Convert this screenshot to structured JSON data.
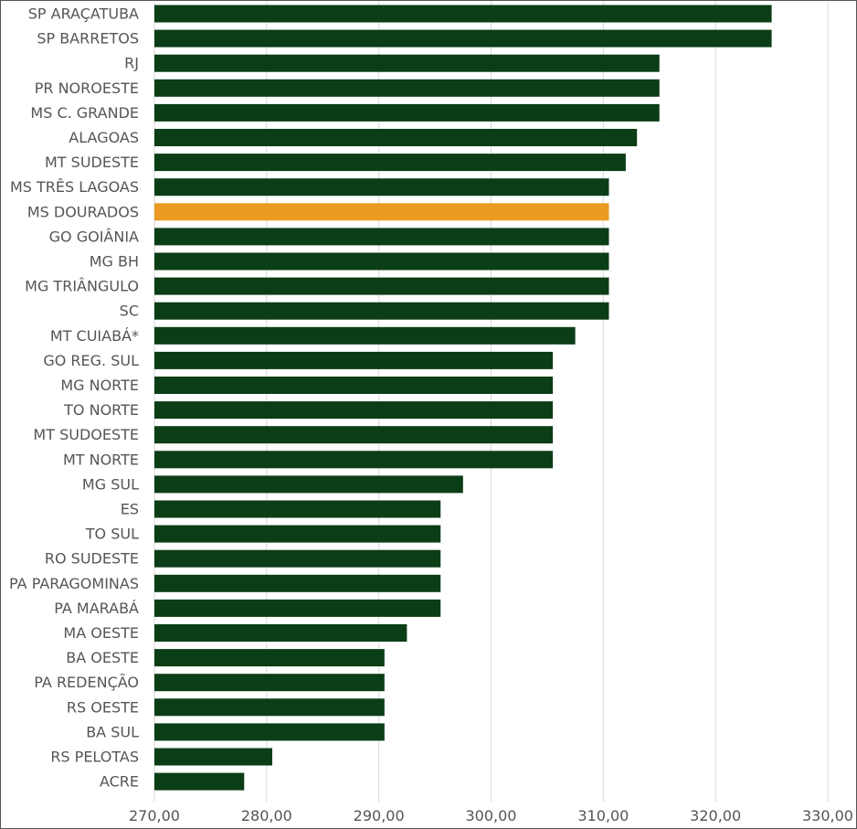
{
  "chart_data": {
    "type": "bar",
    "orientation": "horizontal",
    "title": "",
    "xlabel": "",
    "ylabel": "",
    "xlim": [
      270,
      330
    ],
    "x_ticks": [
      "270,00",
      "280,00",
      "290,00",
      "300,00",
      "310,00",
      "320,00",
      "330,00"
    ],
    "grid": "vertical",
    "legend": "none",
    "colors": {
      "default": "#0b3d16",
      "highlight": "#eb9b22",
      "grid": "#d9d9d9",
      "text": "#555555"
    },
    "categories": [
      "SP ARAÇATUBA",
      "SP BARRETOS",
      "RJ",
      "PR NOROESTE",
      "MS C. GRANDE",
      "ALAGOAS",
      "MT SUDESTE",
      "MS TRÊS LAGOAS",
      "MS DOURADOS",
      "GO GOIÂNIA",
      "MG BH",
      "MG TRIÂNGULO",
      "SC",
      "MT CUIABÁ*",
      "GO REG. SUL",
      "MG NORTE",
      "TO NORTE",
      "MT SUDOESTE",
      "MT NORTE",
      "MG SUL",
      "ES",
      "TO SUL",
      "RO SUDESTE",
      "PA PARAGOMINAS",
      "PA MARABÁ",
      "MA OESTE",
      "BA OESTE",
      "PA REDENÇÃO",
      "RS OESTE",
      "BA SUL",
      "RS PELOTAS",
      "ACRE"
    ],
    "values": [
      325,
      325,
      315,
      315,
      315,
      313,
      312,
      310.5,
      310.5,
      310.5,
      310.5,
      310.5,
      310.5,
      307.5,
      305.5,
      305.5,
      305.5,
      305.5,
      305.5,
      297.5,
      295.5,
      295.5,
      295.5,
      295.5,
      295.5,
      292.5,
      290.5,
      290.5,
      290.5,
      290.5,
      280.5,
      278
    ],
    "highlight_category": "MS DOURADOS"
  }
}
